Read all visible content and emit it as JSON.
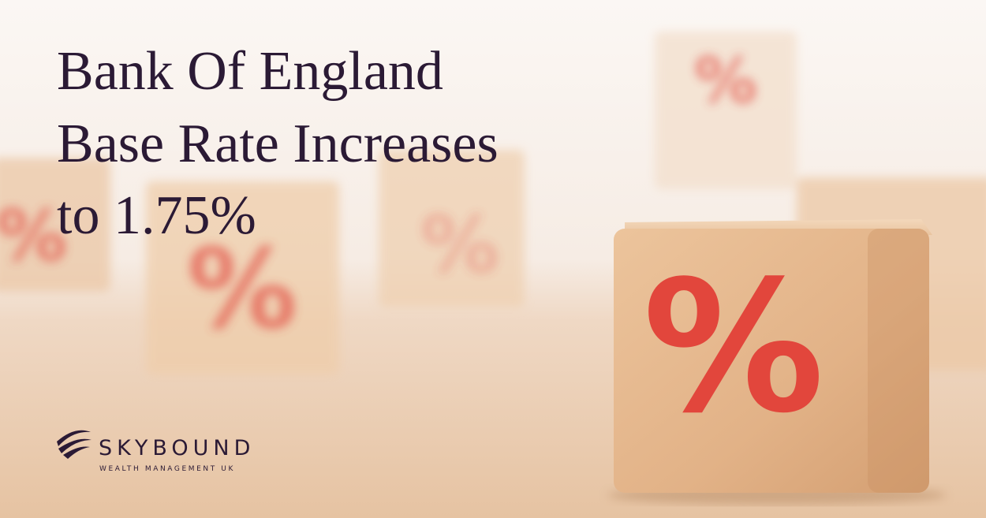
{
  "headline": {
    "lines": [
      "Bank Of England",
      "Base Rate Increases",
      "to 1.75%"
    ]
  },
  "blocks": [
    {
      "symbol": "%"
    },
    {
      "symbol": "%"
    },
    {
      "symbol": "%"
    },
    {
      "symbol": "%"
    },
    {
      "symbol": "%"
    }
  ],
  "logo": {
    "name": "SKYBOUND",
    "tagline": "WEALTH MANAGEMENT UK"
  }
}
